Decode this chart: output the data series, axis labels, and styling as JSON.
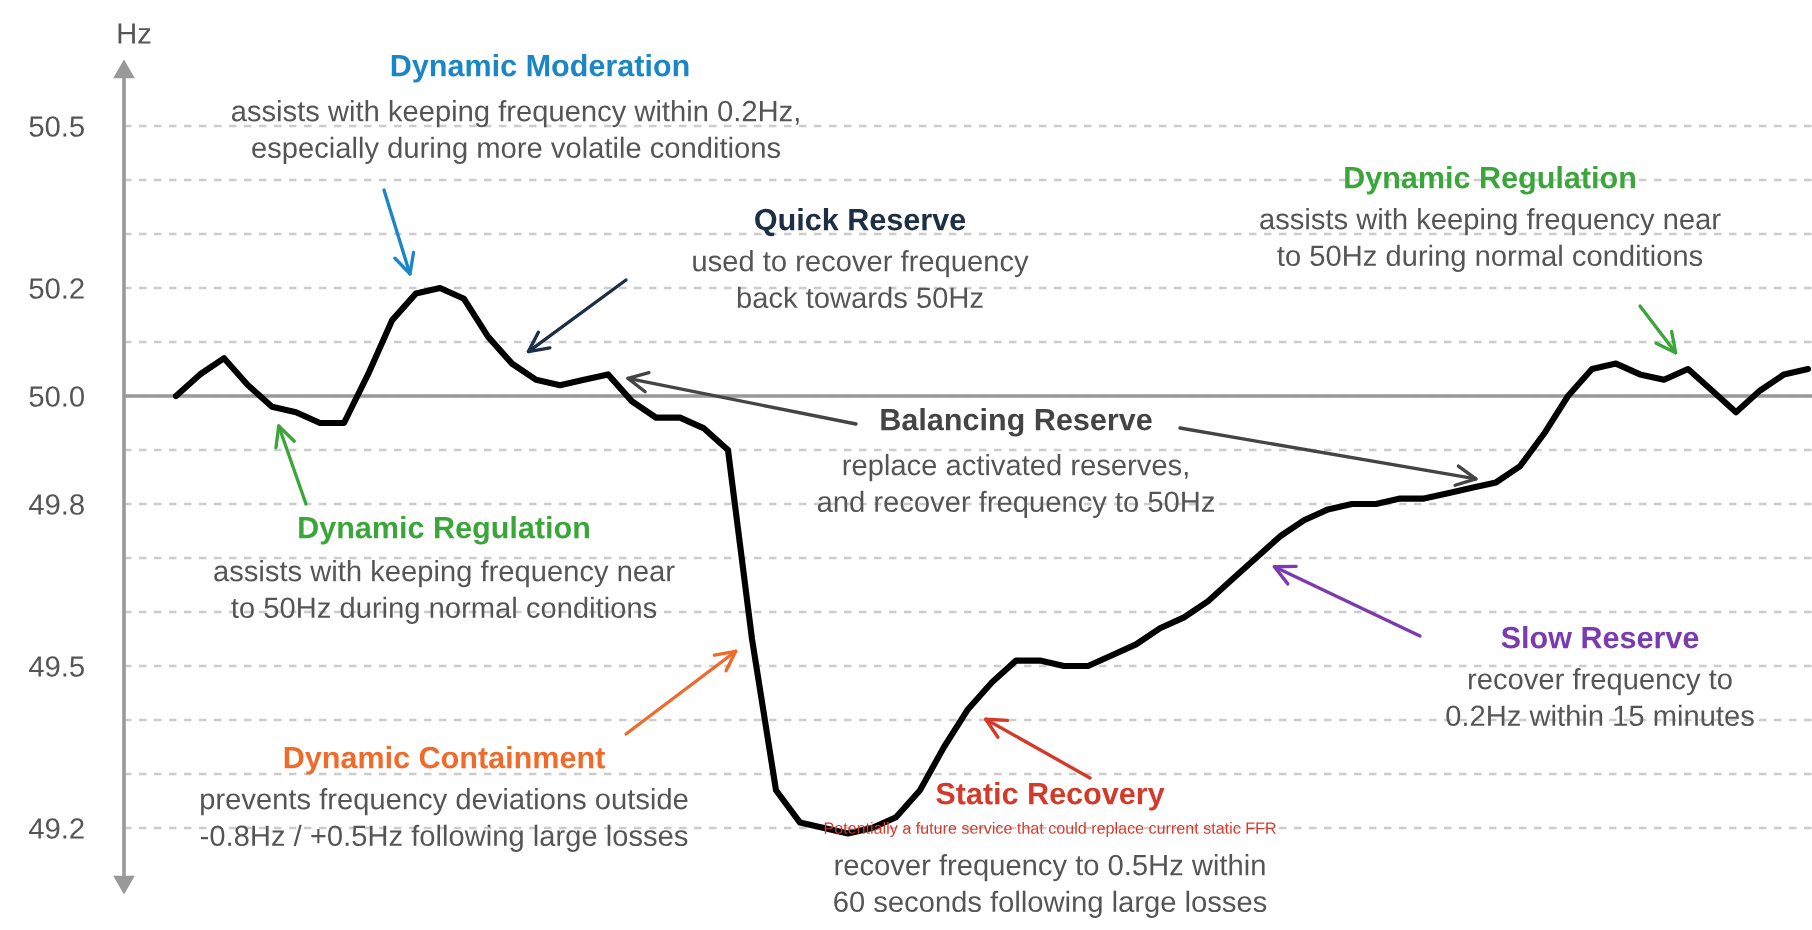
{
  "chart_data": {
    "type": "line",
    "ylabel": "Hz",
    "categories": [
      null,
      null,
      null,
      null,
      null,
      null,
      null,
      null,
      null,
      null,
      null,
      null,
      null,
      null,
      null,
      null,
      null,
      null,
      null,
      null,
      null,
      null,
      null,
      null,
      null,
      null,
      null,
      null,
      null,
      null,
      null,
      null,
      null,
      null,
      null,
      null,
      null,
      null,
      null,
      null,
      null,
      null,
      null,
      null,
      null,
      null,
      null,
      null,
      null,
      null,
      null,
      null,
      null,
      null,
      null,
      null,
      null,
      null,
      null,
      null,
      null,
      null,
      null,
      null,
      null,
      null,
      null,
      null,
      null
    ],
    "series": [
      {
        "color": "#000000",
        "values": [
          50.0,
          50.04,
          50.07,
          50.02,
          49.98,
          49.97,
          49.95,
          49.95,
          50.04,
          50.14,
          50.19,
          50.2,
          50.18,
          50.11,
          50.06,
          50.03,
          50.02,
          50.03,
          50.04,
          49.99,
          49.96,
          49.96,
          49.94,
          49.9,
          49.55,
          49.27,
          49.21,
          49.2,
          49.19,
          49.2,
          49.22,
          49.27,
          49.35,
          49.42,
          49.47,
          49.51,
          49.51,
          49.5,
          49.5,
          49.52,
          49.54,
          49.57,
          49.59,
          49.62,
          49.66,
          49.7,
          49.74,
          49.77,
          49.79,
          49.8,
          49.8,
          49.81,
          49.81,
          49.82,
          49.83,
          49.84,
          49.87,
          49.93,
          50.0,
          50.05,
          50.06,
          50.04,
          50.03,
          50.05,
          50.01,
          49.97,
          50.01,
          50.04,
          50.05
        ]
      }
    ],
    "ylim": [
      49.1,
      50.6
    ],
    "yticks": [
      49.2,
      {
        "value": 49.3,
        "label": null
      },
      {
        "value": 49.4,
        "label": null
      },
      49.5,
      {
        "value": 49.6,
        "label": null
      },
      {
        "value": 49.7,
        "label": null
      },
      49.8,
      {
        "value": 49.9,
        "label": null
      },
      {
        "value": 50,
        "label": "50.0"
      },
      {
        "value": 50.1,
        "label": null
      },
      50.2,
      {
        "value": 50.3,
        "label": null
      },
      {
        "value": 50.4,
        "label": null
      },
      50.5
    ],
    "grid": "y",
    "marker": "none",
    "line_style": "solid",
    "ref_lines": [
      {
        "axis": "y",
        "value": 50,
        "color": "#999999",
        "line_style": "solid"
      }
    ],
    "annotations": [
      "Dynamic Moderation",
      "assists with keeping frequency within 0.2Hz,\nespecially during more volatile conditions",
      "Quick Reserve",
      "used to recover frequency\nback towards 50Hz",
      "Balancing Reserve",
      "replace activated reserves,\nand recover frequency to 50Hz",
      "Dynamic Regulation",
      "assists with keeping frequency near\nto 50Hz during normal conditions",
      "Dynamic Containment",
      "prevents frequency deviations outside\n-0.8Hz / +0.5Hz following large losses",
      "Static Recovery",
      "Potentially a future service that could replace current static FFR",
      "recover frequency to 0.5Hz within\n60 seconds following large losses",
      "Slow Reserve",
      "recover frequency to\n0.2Hz within 15 minutes",
      "Dynamic Regulation",
      "assists with keeping frequency near\nto 50Hz during normal conditions"
    ]
  }
}
